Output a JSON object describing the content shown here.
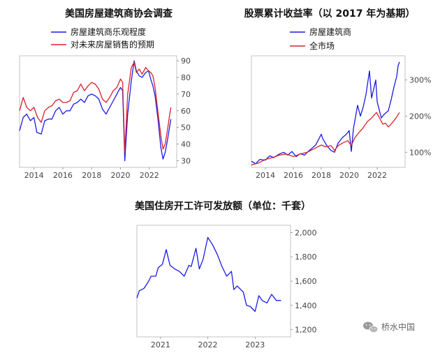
{
  "chart_data": [
    {
      "type": "line",
      "title": "美国房屋建筑商协会调查",
      "series": [
        {
          "name": "房屋建筑商乐观程度",
          "color": "#1a1ae6",
          "points": [
            [
              2013.0,
              48
            ],
            [
              2013.25,
              56
            ],
            [
              2013.5,
              58
            ],
            [
              2013.75,
              54
            ],
            [
              2014.0,
              56
            ],
            [
              2014.2,
              47
            ],
            [
              2014.5,
              46
            ],
            [
              2014.75,
              54
            ],
            [
              2015.0,
              55
            ],
            [
              2015.25,
              55
            ],
            [
              2015.5,
              60
            ],
            [
              2015.75,
              62
            ],
            [
              2016.0,
              58
            ],
            [
              2016.25,
              60
            ],
            [
              2016.5,
              60
            ],
            [
              2016.75,
              64
            ],
            [
              2017.0,
              65
            ],
            [
              2017.25,
              67
            ],
            [
              2017.5,
              65
            ],
            [
              2017.75,
              69
            ],
            [
              2018.0,
              70
            ],
            [
              2018.25,
              69
            ],
            [
              2018.5,
              67
            ],
            [
              2018.75,
              61
            ],
            [
              2019.0,
              58
            ],
            [
              2019.25,
              62
            ],
            [
              2019.5,
              66
            ],
            [
              2019.75,
              70
            ],
            [
              2020.0,
              74
            ],
            [
              2020.15,
              72
            ],
            [
              2020.3,
              30
            ],
            [
              2020.5,
              58
            ],
            [
              2020.75,
              78
            ],
            [
              2020.95,
              90
            ],
            [
              2021.1,
              84
            ],
            [
              2021.3,
              81
            ],
            [
              2021.5,
              80
            ],
            [
              2021.75,
              83
            ],
            [
              2021.95,
              84
            ],
            [
              2022.1,
              79
            ],
            [
              2022.25,
              75
            ],
            [
              2022.4,
              69
            ],
            [
              2022.6,
              55
            ],
            [
              2022.8,
              38
            ],
            [
              2022.95,
              31
            ],
            [
              2023.1,
              35
            ],
            [
              2023.25,
              42
            ],
            [
              2023.4,
              50
            ],
            [
              2023.5,
              55
            ]
          ]
        },
        {
          "name": "对未来房屋销售的预期",
          "color": "#d6212b",
          "points": [
            [
              2013.0,
              60
            ],
            [
              2013.25,
              68
            ],
            [
              2013.5,
              62
            ],
            [
              2013.75,
              60
            ],
            [
              2014.0,
              62
            ],
            [
              2014.25,
              56
            ],
            [
              2014.5,
              53
            ],
            [
              2014.75,
              60
            ],
            [
              2015.0,
              62
            ],
            [
              2015.25,
              63
            ],
            [
              2015.5,
              66
            ],
            [
              2015.75,
              67
            ],
            [
              2016.0,
              65
            ],
            [
              2016.25,
              65
            ],
            [
              2016.5,
              66
            ],
            [
              2016.75,
              71
            ],
            [
              2017.0,
              72
            ],
            [
              2017.25,
              76
            ],
            [
              2017.5,
              72
            ],
            [
              2017.75,
              75
            ],
            [
              2018.0,
              77
            ],
            [
              2018.25,
              76
            ],
            [
              2018.5,
              73
            ],
            [
              2018.75,
              67
            ],
            [
              2019.0,
              65
            ],
            [
              2019.25,
              68
            ],
            [
              2019.5,
              72
            ],
            [
              2019.75,
              74
            ],
            [
              2020.0,
              79
            ],
            [
              2020.15,
              77
            ],
            [
              2020.3,
              35
            ],
            [
              2020.5,
              70
            ],
            [
              2020.75,
              86
            ],
            [
              2020.95,
              89
            ],
            [
              2021.1,
              83
            ],
            [
              2021.3,
              85
            ],
            [
              2021.5,
              82
            ],
            [
              2021.75,
              86
            ],
            [
              2021.95,
              84
            ],
            [
              2022.1,
              83
            ],
            [
              2022.25,
              81
            ],
            [
              2022.4,
              74
            ],
            [
              2022.6,
              59
            ],
            [
              2022.8,
              45
            ],
            [
              2022.95,
              37
            ],
            [
              2023.1,
              40
            ],
            [
              2023.25,
              48
            ],
            [
              2023.4,
              57
            ],
            [
              2023.5,
              62
            ]
          ]
        }
      ],
      "xticks": [
        2014,
        2016,
        2018,
        2020,
        2022
      ],
      "xlim": [
        2013.0,
        2023.9
      ],
      "yticks": [
        30,
        40,
        50,
        60,
        70,
        80,
        90
      ],
      "ylim": [
        26,
        93
      ],
      "y_axis_side": "right",
      "legend_position": "top-left",
      "grid": false
    },
    {
      "type": "line",
      "title": "股票累计收益率（以 2017 年为基期）",
      "series": [
        {
          "name": "房屋建筑商",
          "color": "#1a1ae6",
          "points": [
            [
              2013.0,
              75
            ],
            [
              2013.3,
              68
            ],
            [
              2013.6,
              80
            ],
            [
              2014.0,
              78
            ],
            [
              2014.3,
              90
            ],
            [
              2014.6,
              85
            ],
            [
              2015.0,
              95
            ],
            [
              2015.3,
              100
            ],
            [
              2015.6,
              92
            ],
            [
              2015.9,
              102
            ],
            [
              2016.2,
              88
            ],
            [
              2016.5,
              96
            ],
            [
              2016.8,
              92
            ],
            [
              2017.0,
              100
            ],
            [
              2017.3,
              110
            ],
            [
              2017.6,
              120
            ],
            [
              2018.0,
              150
            ],
            [
              2018.1,
              138
            ],
            [
              2018.4,
              118
            ],
            [
              2018.7,
              105
            ],
            [
              2018.95,
              100
            ],
            [
              2019.2,
              125
            ],
            [
              2019.5,
              140
            ],
            [
              2019.8,
              150
            ],
            [
              2020.0,
              160
            ],
            [
              2020.15,
              102
            ],
            [
              2020.3,
              165
            ],
            [
              2020.6,
              230
            ],
            [
              2020.8,
              200
            ],
            [
              2021.0,
              225
            ],
            [
              2021.2,
              260
            ],
            [
              2021.45,
              325
            ],
            [
              2021.6,
              250
            ],
            [
              2021.9,
              300
            ],
            [
              2022.0,
              240
            ],
            [
              2022.3,
              195
            ],
            [
              2022.5,
              205
            ],
            [
              2022.8,
              215
            ],
            [
              2023.0,
              245
            ],
            [
              2023.2,
              280
            ],
            [
              2023.4,
              310
            ],
            [
              2023.5,
              340
            ],
            [
              2023.6,
              350
            ]
          ]
        },
        {
          "name": "全市场",
          "color": "#d6212b",
          "points": [
            [
              2013.0,
              65
            ],
            [
              2013.5,
              70
            ],
            [
              2014.0,
              80
            ],
            [
              2014.5,
              85
            ],
            [
              2015.0,
              92
            ],
            [
              2015.5,
              95
            ],
            [
              2016.0,
              88
            ],
            [
              2016.5,
              95
            ],
            [
              2017.0,
              100
            ],
            [
              2017.5,
              110
            ],
            [
              2018.0,
              120
            ],
            [
              2018.3,
              115
            ],
            [
              2018.7,
              118
            ],
            [
              2018.95,
              105
            ],
            [
              2019.2,
              118
            ],
            [
              2019.5,
              125
            ],
            [
              2019.9,
              132
            ],
            [
              2020.15,
              118
            ],
            [
              2020.4,
              140
            ],
            [
              2020.7,
              155
            ],
            [
              2020.95,
              165
            ],
            [
              2021.3,
              185
            ],
            [
              2021.6,
              195
            ],
            [
              2021.95,
              210
            ],
            [
              2022.1,
              200
            ],
            [
              2022.4,
              178
            ],
            [
              2022.6,
              180
            ],
            [
              2022.8,
              170
            ],
            [
              2023.0,
              178
            ],
            [
              2023.3,
              192
            ],
            [
              2023.6,
              210
            ]
          ]
        }
      ],
      "xticks": [
        2014,
        2016,
        2018,
        2020,
        2022
      ],
      "xlim": [
        2013.0,
        2024.0
      ],
      "yticks": [
        100,
        200,
        300
      ],
      "ytick_labels": [
        "100%",
        "200%",
        "300%"
      ],
      "ylim": [
        58,
        367
      ],
      "y_axis_side": "right",
      "legend_position": "top-left",
      "grid": false
    },
    {
      "type": "line",
      "title": "美国住房开工许可发放额（单位：千套）",
      "series": [
        {
          "name": "",
          "color": "#1a1ae6",
          "points": [
            [
              2020.5,
              1460
            ],
            [
              2020.55,
              1520
            ],
            [
              2020.65,
              1540
            ],
            [
              2020.75,
              1600
            ],
            [
              2020.8,
              1640
            ],
            [
              2020.9,
              1640
            ],
            [
              2020.95,
              1710
            ],
            [
              2021.04,
              1740
            ],
            [
              2021.12,
              1860
            ],
            [
              2021.2,
              1730
            ],
            [
              2021.3,
              1700
            ],
            [
              2021.4,
              1680
            ],
            [
              2021.5,
              1640
            ],
            [
              2021.6,
              1730
            ],
            [
              2021.65,
              1720
            ],
            [
              2021.75,
              1870
            ],
            [
              2021.82,
              1700
            ],
            [
              2021.9,
              1780
            ],
            [
              2022.0,
              1960
            ],
            [
              2022.1,
              1900
            ],
            [
              2022.2,
              1820
            ],
            [
              2022.3,
              1720
            ],
            [
              2022.4,
              1640
            ],
            [
              2022.5,
              1680
            ],
            [
              2022.55,
              1530
            ],
            [
              2022.62,
              1560
            ],
            [
              2022.75,
              1510
            ],
            [
              2022.82,
              1400
            ],
            [
              2022.9,
              1390
            ],
            [
              2023.0,
              1350
            ],
            [
              2023.08,
              1480
            ],
            [
              2023.15,
              1440
            ],
            [
              2023.25,
              1420
            ],
            [
              2023.35,
              1490
            ],
            [
              2023.45,
              1440
            ],
            [
              2023.55,
              1440
            ]
          ]
        }
      ],
      "xticks": [
        2021,
        2022,
        2023
      ],
      "xlim": [
        2020.5,
        2023.75
      ],
      "yticks": [
        1200,
        1400,
        1600,
        1800,
        2000
      ],
      "ytick_labels": [
        "1,200",
        "1,400",
        "1,600",
        "1,800",
        "2,000"
      ],
      "ylim": [
        1140,
        2060
      ],
      "y_axis_side": "right",
      "grid": false
    }
  ],
  "watermark": {
    "text": "桥水中国",
    "icon": "wechat-icon"
  }
}
